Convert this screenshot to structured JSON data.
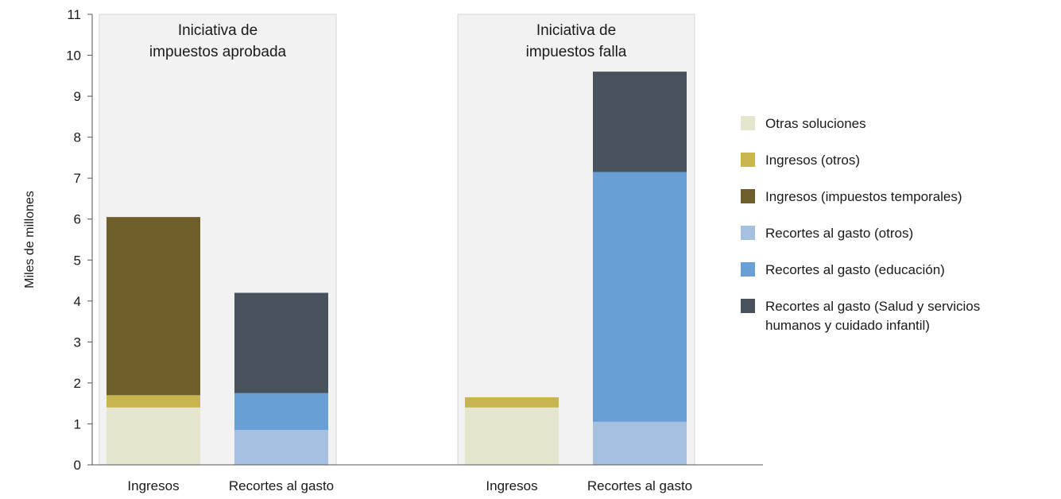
{
  "chart_data": {
    "type": "bar",
    "stacked": true,
    "ylabel": "Miles de millones",
    "ylim": [
      0,
      11
    ],
    "yticks": [
      0,
      1,
      2,
      3,
      4,
      5,
      6,
      7,
      8,
      9,
      10,
      11
    ],
    "grid": false,
    "legend_position": "right",
    "groups": [
      {
        "title_lines": [
          "Iniciativa de",
          "impuestos aprobada"
        ],
        "categories": [
          "Ingresos",
          "Recortes al gasto"
        ]
      },
      {
        "title_lines": [
          "Iniciativa de",
          "impuestos falla"
        ],
        "categories": [
          "Ingresos",
          "Recortes al gasto"
        ]
      }
    ],
    "series": [
      {
        "name": "Otras soluciones",
        "color": "#e6e5cd",
        "values": [
          1.4,
          0,
          1.4,
          0
        ]
      },
      {
        "name": "Ingresos (otros)",
        "color": "#c8b550",
        "values": [
          0.3,
          0,
          0.25,
          0
        ]
      },
      {
        "name": "Ingresos (impuestos temporales)",
        "color": "#6e5e2a",
        "values": [
          4.35,
          0,
          0,
          0
        ]
      },
      {
        "name": "Recortes al gasto (otros)",
        "color": "#a6c0df",
        "values": [
          0,
          0.85,
          0,
          1.05
        ]
      },
      {
        "name": "Recortes al gasto (educación)",
        "color": "#6a9fd6",
        "values": [
          0,
          0.9,
          0,
          6.1
        ]
      },
      {
        "name": "Recortes al gasto (Salud y servicios humanos y cuidado infantil)",
        "legend_lines": [
          "Recortes al gasto (Salud y servicios",
          "humanos y cuidado infantil)"
        ],
        "color": "#47525c",
        "values": [
          0,
          2.45,
          0,
          2.45
        ]
      }
    ]
  }
}
